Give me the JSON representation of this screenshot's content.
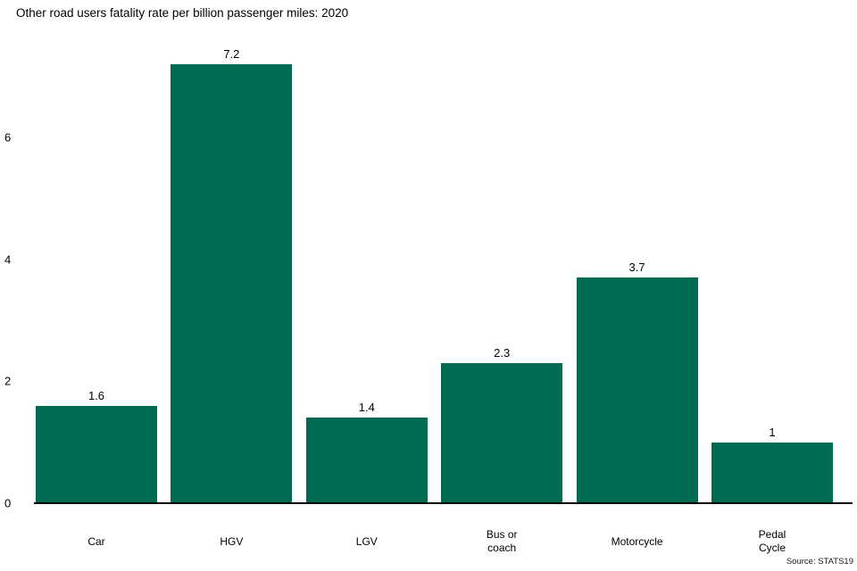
{
  "title": "Other road users fatality rate per billion passenger miles: 2020",
  "source": "Source: STATS19",
  "colors": {
    "bar": "#006A53",
    "axis": "#000000",
    "text": "#000000",
    "background": "#FFFFFF"
  },
  "chart_data": {
    "type": "bar",
    "title": "Other road users fatality rate per billion passenger miles: 2020",
    "categories": [
      "Car",
      "HGV",
      "LGV",
      "Bus or coach",
      "Motorcycle",
      "Pedal Cycle"
    ],
    "category_display": [
      "Car",
      "HGV",
      "LGV",
      "Bus or\ncoach",
      "Motorcycle",
      "Pedal\nCycle"
    ],
    "values": [
      1.6,
      7.2,
      1.4,
      2.3,
      3.7,
      1
    ],
    "value_labels": [
      "1.6",
      "7.2",
      "1.4",
      "2.3",
      "3.7",
      "1"
    ],
    "xlabel": "",
    "ylabel": "",
    "yticks": [
      0,
      2,
      4,
      6
    ],
    "ylim": [
      0,
      8.2
    ],
    "grid": false,
    "legend": "none",
    "bar_color": "#006A53",
    "source": "Source: STATS19"
  }
}
